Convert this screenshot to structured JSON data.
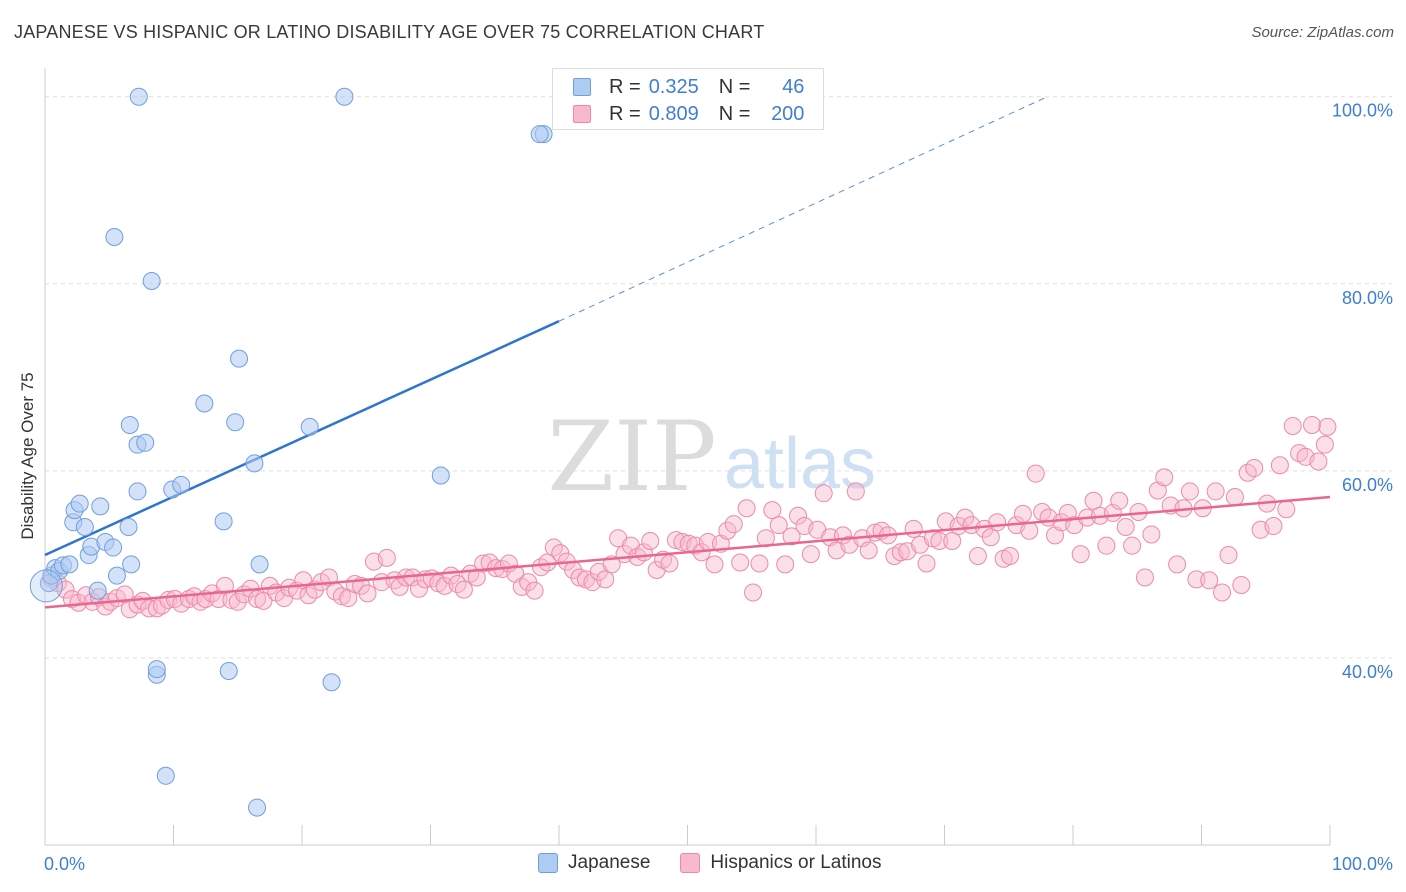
{
  "header": {
    "title": "JAPANESE VS HISPANIC OR LATINO DISABILITY AGE OVER 75 CORRELATION CHART",
    "source": "Source: ZipAtlas.com"
  },
  "watermark": {
    "zip": "ZIP",
    "atlas": "atlas"
  },
  "colors": {
    "japanese_fill": "#aecbf2",
    "japanese_stroke": "#6f9fe0",
    "japanese_line": "#2f74d0",
    "hispanic_fill": "#f7b9cb",
    "hispanic_stroke": "#ee8aa8",
    "hispanic_line": "#e8668f",
    "accent_text": "#3f7ed6"
  },
  "legend": {
    "rows": [
      {
        "r_label": "R =",
        "r_value": "0.325",
        "n_label": "N =",
        "n_value": "46"
      },
      {
        "r_label": "R =",
        "r_value": "0.809",
        "n_label": "N =",
        "n_value": "200"
      }
    ]
  },
  "bottom_legend": {
    "japanese": "Japanese",
    "hispanic": "Hispanics or Latinos"
  },
  "chart_data": {
    "type": "scatter",
    "title": "JAPANESE VS HISPANIC OR LATINO DISABILITY AGE OVER 75 CORRELATION CHART",
    "xlabel": "",
    "ylabel": "Disability Age Over 75",
    "xlim": [
      0,
      100
    ],
    "ylim": [
      20,
      102
    ],
    "x_tick_labels": [
      "0.0%",
      "100.0%"
    ],
    "y_ticks": [
      40,
      60,
      80,
      100
    ],
    "y_tick_labels": [
      "40.0%",
      "60.0%",
      "80.0%",
      "100.0%"
    ],
    "grid": true,
    "legend_position": "top-center",
    "series": [
      {
        "name": "Japanese",
        "r": 0.325,
        "n": 46,
        "trend": {
          "x0": 0,
          "y0": 51.0,
          "x1": 40,
          "y1": 76.0,
          "dashed_to_x": 78,
          "dashed_to_y": 100.0
        },
        "points": [
          [
            0.3,
            48.0
          ],
          [
            0.5,
            48.8
          ],
          [
            0.8,
            49.6
          ],
          [
            1.1,
            49.3
          ],
          [
            1.4,
            49.9
          ],
          [
            1.9,
            50.0
          ],
          [
            2.2,
            54.5
          ],
          [
            2.3,
            55.8
          ],
          [
            2.7,
            56.5
          ],
          [
            3.1,
            54.0
          ],
          [
            3.4,
            51.0
          ],
          [
            3.6,
            51.9
          ],
          [
            4.1,
            47.2
          ],
          [
            4.3,
            56.2
          ],
          [
            4.7,
            52.4
          ],
          [
            5.3,
            51.8
          ],
          [
            5.6,
            48.8
          ],
          [
            6.5,
            54.0
          ],
          [
            6.7,
            50.0
          ],
          [
            5.4,
            85.0
          ],
          [
            7.3,
            100.0
          ],
          [
            8.3,
            80.3
          ],
          [
            7.2,
            62.8
          ],
          [
            7.8,
            63.0
          ],
          [
            7.2,
            57.8
          ],
          [
            6.6,
            64.9
          ],
          [
            9.9,
            58.0
          ],
          [
            10.6,
            58.5
          ],
          [
            12.4,
            67.2
          ],
          [
            13.9,
            54.6
          ],
          [
            14.8,
            65.2
          ],
          [
            15.1,
            72.0
          ],
          [
            16.3,
            60.8
          ],
          [
            16.7,
            50.0
          ],
          [
            20.6,
            64.7
          ],
          [
            23.3,
            100.0
          ],
          [
            38.8,
            96.0
          ],
          [
            38.5,
            96.0
          ],
          [
            30.8,
            59.5
          ],
          [
            8.7,
            38.2
          ],
          [
            8.7,
            38.8
          ],
          [
            14.3,
            38.6
          ],
          [
            22.3,
            37.4
          ],
          [
            9.4,
            27.4
          ],
          [
            16.5,
            24.0
          ],
          [
            0.1,
            47.7
          ]
        ]
      },
      {
        "name": "Hispanics or Latinos",
        "r": 0.809,
        "n": 200,
        "trend": {
          "x0": 0,
          "y0": 45.4,
          "x1": 100,
          "y1": 57.2
        },
        "points": [
          [
            0.5,
            48.5
          ],
          [
            1.0,
            48.0
          ],
          [
            1.6,
            47.3
          ],
          [
            2.1,
            46.3
          ],
          [
            2.6,
            45.9
          ],
          [
            3.2,
            46.7
          ],
          [
            3.7,
            46.0
          ],
          [
            4.2,
            46.5
          ],
          [
            4.7,
            45.5
          ],
          [
            5.1,
            46.0
          ],
          [
            5.6,
            46.4
          ],
          [
            6.2,
            46.8
          ],
          [
            6.6,
            45.2
          ],
          [
            7.2,
            45.7
          ],
          [
            7.6,
            46.1
          ],
          [
            8.1,
            45.3
          ],
          [
            8.7,
            45.3
          ],
          [
            9.1,
            45.6
          ],
          [
            9.6,
            46.2
          ],
          [
            10.1,
            46.3
          ],
          [
            10.6,
            45.8
          ],
          [
            11.2,
            46.3
          ],
          [
            11.6,
            46.6
          ],
          [
            12.1,
            46.0
          ],
          [
            12.5,
            46.3
          ],
          [
            13.0,
            46.9
          ],
          [
            13.5,
            46.3
          ],
          [
            14.0,
            47.7
          ],
          [
            14.5,
            46.2
          ],
          [
            15.0,
            46.0
          ],
          [
            15.5,
            46.8
          ],
          [
            16.0,
            47.4
          ],
          [
            16.5,
            46.3
          ],
          [
            17.0,
            46.1
          ],
          [
            17.5,
            47.7
          ],
          [
            18.0,
            47.0
          ],
          [
            18.6,
            46.4
          ],
          [
            19.0,
            47.5
          ],
          [
            19.6,
            47.2
          ],
          [
            20.1,
            48.3
          ],
          [
            20.5,
            46.7
          ],
          [
            21.0,
            47.3
          ],
          [
            21.5,
            48.1
          ],
          [
            22.1,
            48.6
          ],
          [
            22.6,
            47.1
          ],
          [
            23.1,
            46.6
          ],
          [
            23.6,
            46.4
          ],
          [
            24.1,
            47.9
          ],
          [
            24.6,
            47.7
          ],
          [
            25.1,
            46.9
          ],
          [
            25.6,
            50.3
          ],
          [
            26.2,
            48.1
          ],
          [
            26.6,
            50.7
          ],
          [
            27.2,
            48.3
          ],
          [
            27.6,
            47.6
          ],
          [
            28.1,
            48.6
          ],
          [
            28.6,
            48.6
          ],
          [
            29.1,
            47.4
          ],
          [
            29.6,
            48.4
          ],
          [
            30.1,
            48.5
          ],
          [
            30.6,
            48.0
          ],
          [
            31.1,
            47.7
          ],
          [
            31.6,
            48.8
          ],
          [
            32.1,
            47.9
          ],
          [
            32.6,
            47.3
          ],
          [
            33.1,
            49.0
          ],
          [
            33.6,
            48.6
          ],
          [
            34.1,
            50.1
          ],
          [
            34.6,
            50.2
          ],
          [
            35.1,
            49.6
          ],
          [
            35.6,
            49.5
          ],
          [
            36.1,
            50.1
          ],
          [
            36.6,
            49.0
          ],
          [
            37.1,
            47.6
          ],
          [
            37.6,
            48.1
          ],
          [
            38.1,
            47.2
          ],
          [
            38.6,
            49.7
          ],
          [
            39.1,
            50.2
          ],
          [
            39.6,
            51.8
          ],
          [
            40.1,
            51.2
          ],
          [
            40.6,
            50.3
          ],
          [
            41.1,
            49.4
          ],
          [
            41.6,
            48.6
          ],
          [
            42.1,
            48.4
          ],
          [
            42.6,
            48.1
          ],
          [
            43.1,
            49.2
          ],
          [
            43.6,
            48.4
          ],
          [
            44.1,
            50.0
          ],
          [
            44.6,
            52.8
          ],
          [
            45.1,
            51.1
          ],
          [
            45.6,
            52.0
          ],
          [
            46.1,
            50.8
          ],
          [
            46.6,
            51.3
          ],
          [
            47.1,
            52.5
          ],
          [
            47.6,
            49.4
          ],
          [
            48.1,
            50.5
          ],
          [
            48.6,
            50.1
          ],
          [
            49.1,
            52.6
          ],
          [
            49.6,
            52.4
          ],
          [
            50.1,
            52.2
          ],
          [
            50.6,
            52.0
          ],
          [
            51.1,
            51.3
          ],
          [
            51.6,
            52.4
          ],
          [
            52.1,
            50.0
          ],
          [
            52.6,
            52.2
          ],
          [
            53.1,
            53.6
          ],
          [
            53.6,
            54.3
          ],
          [
            54.1,
            50.2
          ],
          [
            54.6,
            56.0
          ],
          [
            55.1,
            47.0
          ],
          [
            55.6,
            50.1
          ],
          [
            56.1,
            52.8
          ],
          [
            56.6,
            55.8
          ],
          [
            57.1,
            54.2
          ],
          [
            57.6,
            50.0
          ],
          [
            58.1,
            53.0
          ],
          [
            58.6,
            55.2
          ],
          [
            59.1,
            54.1
          ],
          [
            59.6,
            51.1
          ],
          [
            60.1,
            53.7
          ],
          [
            60.6,
            57.6
          ],
          [
            61.1,
            52.9
          ],
          [
            61.6,
            51.5
          ],
          [
            62.1,
            53.1
          ],
          [
            62.6,
            52.1
          ],
          [
            63.1,
            57.8
          ],
          [
            63.6,
            52.8
          ],
          [
            64.1,
            51.5
          ],
          [
            64.6,
            53.4
          ],
          [
            65.1,
            53.6
          ],
          [
            65.6,
            53.1
          ],
          [
            66.1,
            50.9
          ],
          [
            66.6,
            51.3
          ],
          [
            67.1,
            51.4
          ],
          [
            67.6,
            53.8
          ],
          [
            68.1,
            52.1
          ],
          [
            68.6,
            50.1
          ],
          [
            69.1,
            52.8
          ],
          [
            69.6,
            52.5
          ],
          [
            70.1,
            54.6
          ],
          [
            70.6,
            52.5
          ],
          [
            71.1,
            54.1
          ],
          [
            71.6,
            55.0
          ],
          [
            72.1,
            54.2
          ],
          [
            72.6,
            50.9
          ],
          [
            73.1,
            53.8
          ],
          [
            73.6,
            52.9
          ],
          [
            74.1,
            54.5
          ],
          [
            74.6,
            50.6
          ],
          [
            75.1,
            50.9
          ],
          [
            75.6,
            54.2
          ],
          [
            76.1,
            55.4
          ],
          [
            76.6,
            53.6
          ],
          [
            77.1,
            59.7
          ],
          [
            77.6,
            55.6
          ],
          [
            78.1,
            55.0
          ],
          [
            78.6,
            53.1
          ],
          [
            79.1,
            54.5
          ],
          [
            79.6,
            55.5
          ],
          [
            80.1,
            54.2
          ],
          [
            80.6,
            51.1
          ],
          [
            81.1,
            55.0
          ],
          [
            81.6,
            56.8
          ],
          [
            82.1,
            55.2
          ],
          [
            82.6,
            52.0
          ],
          [
            83.1,
            55.5
          ],
          [
            83.6,
            56.8
          ],
          [
            84.1,
            54.0
          ],
          [
            84.6,
            52.0
          ],
          [
            85.1,
            55.6
          ],
          [
            85.6,
            48.6
          ],
          [
            86.1,
            53.2
          ],
          [
            86.6,
            57.9
          ],
          [
            87.1,
            59.3
          ],
          [
            87.6,
            56.3
          ],
          [
            88.1,
            50.0
          ],
          [
            88.6,
            56.0
          ],
          [
            89.1,
            57.8
          ],
          [
            89.6,
            48.4
          ],
          [
            90.1,
            56.0
          ],
          [
            90.6,
            48.3
          ],
          [
            91.1,
            57.8
          ],
          [
            91.6,
            47.0
          ],
          [
            92.1,
            51.0
          ],
          [
            92.6,
            57.2
          ],
          [
            93.1,
            47.8
          ],
          [
            93.6,
            59.8
          ],
          [
            94.1,
            60.3
          ],
          [
            94.6,
            53.7
          ],
          [
            95.1,
            56.5
          ],
          [
            95.6,
            54.1
          ],
          [
            96.1,
            60.6
          ],
          [
            96.6,
            55.9
          ],
          [
            97.1,
            64.8
          ],
          [
            97.6,
            61.9
          ],
          [
            98.1,
            61.5
          ],
          [
            98.6,
            64.9
          ],
          [
            99.1,
            61.0
          ],
          [
            99.6,
            62.8
          ],
          [
            99.8,
            64.7
          ]
        ]
      }
    ]
  }
}
